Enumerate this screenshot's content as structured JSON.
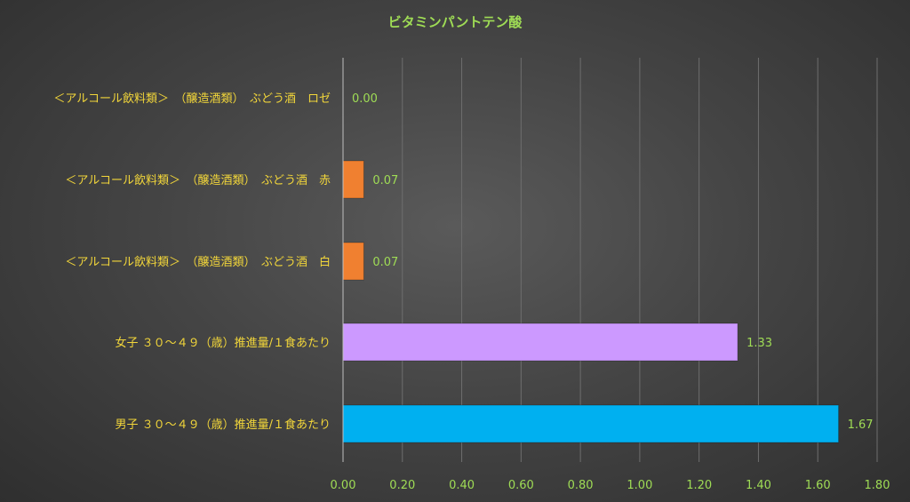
{
  "chart_data": {
    "type": "bar",
    "orientation": "horizontal",
    "title": "ビタミンパントテン酸",
    "categories": [
      "<アルコール飲料類> (醸造酒類) ぶどう酒 ロゼ",
      "<アルコール飲料類> (醸造酒類) ぶどう酒 赤",
      "<アルコール飲料類> (醸造酒類) ぶどう酒 白",
      "女子 30~49 (歳) 推進量/1食あたり",
      "男子 30~49 (歳) 推進量/1食あたり"
    ],
    "category_labels": [
      "＜アルコール飲料類＞　（醸造酒類）　ぶどう酒　ロゼ",
      "＜アルコール飲料類＞　（醸造酒類）　ぶどう酒　赤",
      "＜アルコール飲料類＞　（醸造酒類）　ぶどう酒　白",
      "女子 ３０～４９（歳）推進量/１食あたり",
      "男子 ３０～４９（歳）推進量/１食あたり"
    ],
    "values": [
      0.0,
      0.07,
      0.07,
      1.33,
      1.67
    ],
    "value_labels": [
      "0.00",
      "0.07",
      "0.07",
      "1.33",
      "1.67"
    ],
    "bar_colors": [
      "#f08030",
      "#f08030",
      "#f08030",
      "#cc99ff",
      "#00b0f0"
    ],
    "xlim": [
      0,
      1.8
    ],
    "xticks": [
      "0.00",
      "0.20",
      "0.40",
      "0.60",
      "0.80",
      "1.00",
      "1.20",
      "1.40",
      "1.60",
      "1.80"
    ],
    "grid": true,
    "xlabel": "",
    "ylabel": ""
  },
  "colors": {
    "title": "#9fdc55",
    "category_text": "#f2d63a",
    "tick_text": "#9fdc55",
    "grid": "#6e6e6e",
    "axis": "#bfbfbf"
  }
}
